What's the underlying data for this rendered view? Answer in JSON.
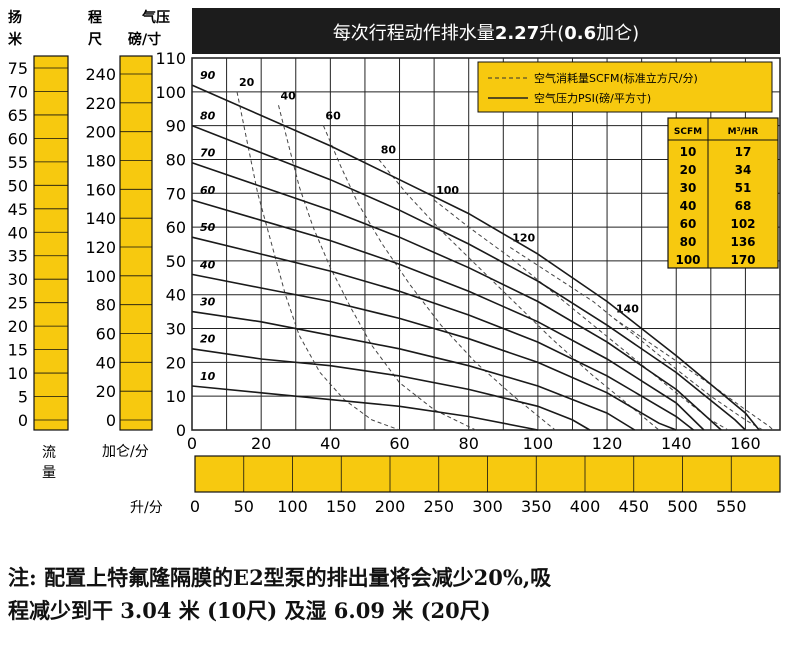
{
  "chart_data": {
    "type": "line",
    "title": "每次行程动作排水量2.27升(0.6加仑)",
    "title_main": "每次行程动作排水量",
    "title_bold": "2.27",
    "title_unit": "升(",
    "title_bold2": "0.6",
    "title_end": "加仑)",
    "head_label_1": "扬",
    "head_label_2": "米",
    "suction_label_1": "程",
    "suction_label_2": "尺",
    "pressure_label_1": "气压",
    "pressure_label_2": "磅/寸",
    "flow_label_1": "流",
    "flow_label_2": "量",
    "xlabel_gpm": "加仑/分",
    "xlabel_lpm": "升/分",
    "x_range": [
      0,
      170
    ],
    "y_range_psi": [
      0,
      110
    ],
    "x_ticks_gpm": [
      0,
      20,
      40,
      60,
      80,
      100,
      120,
      140,
      160
    ],
    "x_ticks_lpm": [
      0,
      50,
      100,
      150,
      200,
      250,
      300,
      350,
      400,
      450,
      500,
      550
    ],
    "y_ticks_psi": [
      0,
      10,
      20,
      30,
      40,
      50,
      60,
      70,
      80,
      90,
      100,
      110
    ],
    "y_ticks_head_m": [
      0,
      5,
      10,
      15,
      20,
      25,
      30,
      35,
      40,
      45,
      50,
      55,
      60,
      65,
      70,
      75
    ],
    "y_ticks_head_ft": [
      0,
      20,
      40,
      60,
      80,
      100,
      120,
      140,
      160,
      180,
      200,
      220,
      240
    ],
    "legend": {
      "placement": "top-right",
      "dashed": "空气消耗量SCFM(标准立方尺/分)",
      "solid": "空气压力PSI(磅/平方寸)"
    },
    "conversion_table": {
      "headers": [
        "SCFM",
        "M³/HR"
      ],
      "rows": [
        [
          "10",
          "17"
        ],
        [
          "20",
          "34"
        ],
        [
          "30",
          "51"
        ],
        [
          "40",
          "68"
        ],
        [
          "60",
          "102"
        ],
        [
          "80",
          "136"
        ],
        [
          "100",
          "170"
        ]
      ]
    },
    "pressure_series": [
      {
        "label": "90",
        "points": [
          [
            0,
            102
          ],
          [
            20,
            93
          ],
          [
            40,
            84
          ],
          [
            60,
            74
          ],
          [
            80,
            64
          ],
          [
            100,
            52
          ],
          [
            120,
            38
          ],
          [
            140,
            22
          ],
          [
            160,
            5
          ],
          [
            164,
            0
          ]
        ]
      },
      {
        "label": "80",
        "points": [
          [
            0,
            90
          ],
          [
            20,
            82
          ],
          [
            40,
            74
          ],
          [
            60,
            65
          ],
          [
            80,
            55
          ],
          [
            100,
            44
          ],
          [
            120,
            31
          ],
          [
            140,
            17
          ],
          [
            157,
            3
          ],
          [
            160,
            0
          ]
        ]
      },
      {
        "label": "70",
        "points": [
          [
            0,
            79
          ],
          [
            20,
            72
          ],
          [
            40,
            65
          ],
          [
            60,
            57
          ],
          [
            80,
            48
          ],
          [
            100,
            38
          ],
          [
            120,
            26
          ],
          [
            140,
            12
          ],
          [
            153,
            0
          ]
        ]
      },
      {
        "label": "60",
        "points": [
          [
            0,
            68
          ],
          [
            20,
            62
          ],
          [
            40,
            56
          ],
          [
            60,
            49
          ],
          [
            80,
            41
          ],
          [
            100,
            32
          ],
          [
            120,
            21
          ],
          [
            140,
            8
          ],
          [
            148,
            0
          ]
        ]
      },
      {
        "label": "50",
        "points": [
          [
            0,
            57
          ],
          [
            20,
            52
          ],
          [
            40,
            47
          ],
          [
            60,
            41
          ],
          [
            80,
            34
          ],
          [
            100,
            26
          ],
          [
            120,
            16
          ],
          [
            140,
            4
          ],
          [
            145,
            0
          ]
        ]
      },
      {
        "label": "40",
        "points": [
          [
            0,
            46
          ],
          [
            20,
            42
          ],
          [
            40,
            38
          ],
          [
            60,
            33
          ],
          [
            80,
            27
          ],
          [
            100,
            20
          ],
          [
            120,
            11
          ],
          [
            135,
            2
          ],
          [
            140,
            0
          ]
        ]
      },
      {
        "label": "30",
        "points": [
          [
            0,
            35
          ],
          [
            20,
            32
          ],
          [
            40,
            28
          ],
          [
            60,
            24
          ],
          [
            80,
            19
          ],
          [
            100,
            13
          ],
          [
            120,
            5
          ],
          [
            128,
            0
          ]
        ]
      },
      {
        "label": "20",
        "points": [
          [
            0,
            24
          ],
          [
            20,
            21
          ],
          [
            40,
            19
          ],
          [
            60,
            16
          ],
          [
            80,
            12
          ],
          [
            100,
            7
          ],
          [
            110,
            3
          ],
          [
            115,
            0
          ]
        ]
      },
      {
        "label": "10",
        "points": [
          [
            0,
            13
          ],
          [
            20,
            11
          ],
          [
            40,
            9
          ],
          [
            60,
            7
          ],
          [
            80,
            4
          ],
          [
            95,
            1
          ],
          [
            100,
            0
          ]
        ]
      }
    ],
    "air_series": [
      {
        "label": "20",
        "points": [
          [
            13,
            100
          ],
          [
            16,
            85
          ],
          [
            19,
            70
          ],
          [
            23,
            55
          ],
          [
            27,
            40
          ],
          [
            31,
            28
          ],
          [
            37,
            17
          ],
          [
            44,
            9
          ],
          [
            52,
            3
          ],
          [
            60,
            0
          ]
        ]
      },
      {
        "label": "40",
        "points": [
          [
            25,
            96
          ],
          [
            28,
            84
          ],
          [
            31,
            72
          ],
          [
            35,
            60
          ],
          [
            40,
            48
          ],
          [
            46,
            36
          ],
          [
            52,
            25
          ],
          [
            60,
            14
          ],
          [
            70,
            6
          ],
          [
            82,
            0
          ]
        ]
      },
      {
        "label": "60",
        "points": [
          [
            38,
            90
          ],
          [
            43,
            78
          ],
          [
            48,
            67
          ],
          [
            55,
            55
          ],
          [
            63,
            43
          ],
          [
            72,
            31
          ],
          [
            82,
            20
          ],
          [
            93,
            10
          ],
          [
            105,
            0
          ]
        ]
      },
      {
        "label": "80",
        "points": [
          [
            54,
            80
          ],
          [
            62,
            70
          ],
          [
            72,
            59
          ],
          [
            82,
            49
          ],
          [
            93,
            38
          ],
          [
            104,
            27
          ],
          [
            116,
            16
          ],
          [
            128,
            6
          ],
          [
            135,
            0
          ]
        ]
      },
      {
        "label": "100",
        "points": [
          [
            70,
            68
          ],
          [
            80,
            60
          ],
          [
            92,
            51
          ],
          [
            104,
            41
          ],
          [
            116,
            31
          ],
          [
            128,
            21
          ],
          [
            140,
            11
          ],
          [
            150,
            3
          ],
          [
            155,
            0
          ]
        ]
      },
      {
        "label": "120",
        "points": [
          [
            92,
            54
          ],
          [
            104,
            46
          ],
          [
            116,
            38
          ],
          [
            128,
            28
          ],
          [
            140,
            18
          ],
          [
            150,
            10
          ],
          [
            160,
            3
          ],
          [
            165,
            0
          ]
        ]
      },
      {
        "label": "140",
        "points": [
          [
            122,
            33
          ],
          [
            132,
            26
          ],
          [
            142,
            19
          ],
          [
            152,
            12
          ],
          [
            160,
            6
          ],
          [
            167,
            1
          ],
          [
            168,
            0
          ]
        ]
      }
    ]
  },
  "note": {
    "line1": "注: 配置上特氟隆隔膜的E2型泵的排出量将会减少20%,吸",
    "line2": "程减少到干 3.04 米 (10尺) 及湿 6.09 米 (20尺)"
  }
}
